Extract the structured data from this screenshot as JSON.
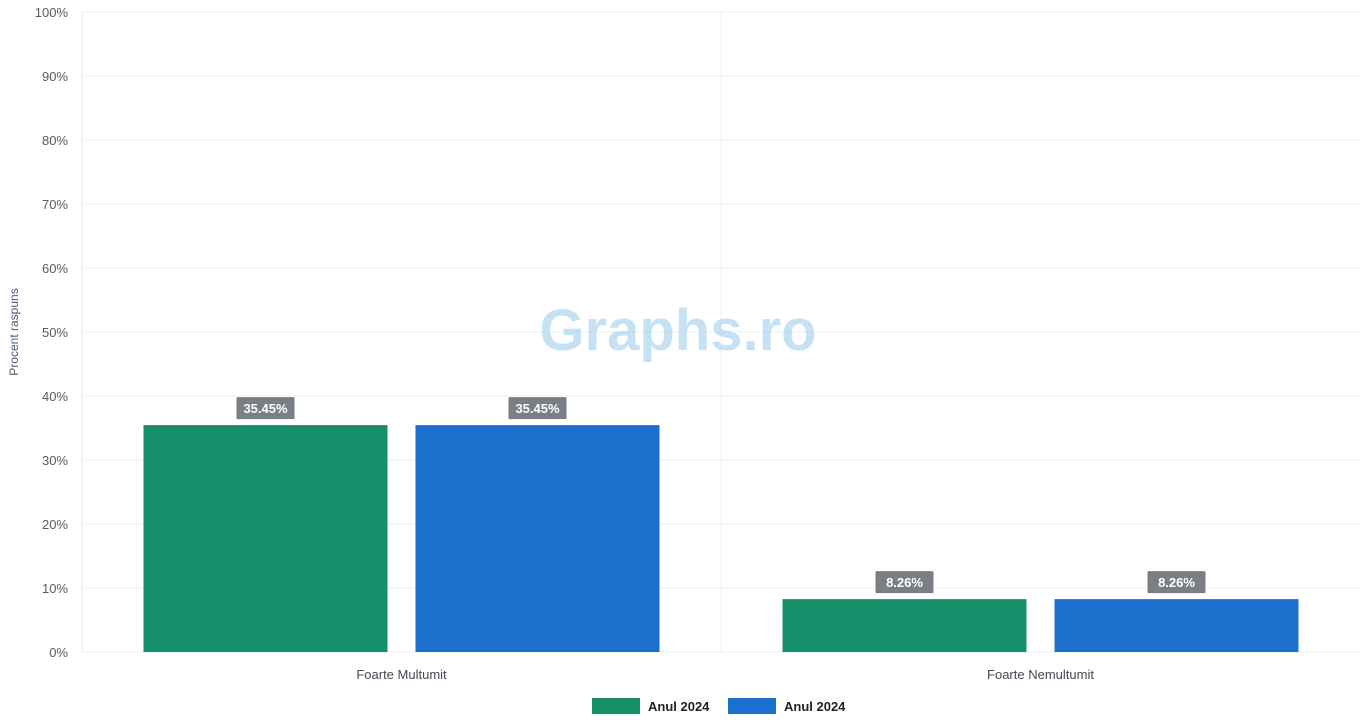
{
  "watermark": "Graphs.ro",
  "chart_data": {
    "type": "bar",
    "title": "",
    "xlabel": "",
    "ylabel": "Procent raspuns",
    "categories": [
      "Foarte Multumit",
      "Foarte Nemultumit"
    ],
    "series": [
      {
        "name": "Anul 2024",
        "color": "#16906a",
        "values": [
          35.45,
          8.26
        ]
      },
      {
        "name": "Anul 2024",
        "color": "#1c6fcc",
        "values": [
          35.45,
          8.26
        ]
      }
    ],
    "value_labels": [
      [
        "35.45%",
        "8.26%"
      ],
      [
        "35.45%",
        "8.26%"
      ]
    ],
    "ylim": [
      0,
      100
    ],
    "yticks": [
      0,
      10,
      20,
      30,
      40,
      50,
      60,
      70,
      80,
      90,
      100
    ],
    "ytick_labels": [
      "0%",
      "10%",
      "20%",
      "30%",
      "40%",
      "50%",
      "60%",
      "70%",
      "80%",
      "90%",
      "100%"
    ],
    "grid": true,
    "legend_position": "bottom-center",
    "data_label_bg": "#7a7f86"
  }
}
